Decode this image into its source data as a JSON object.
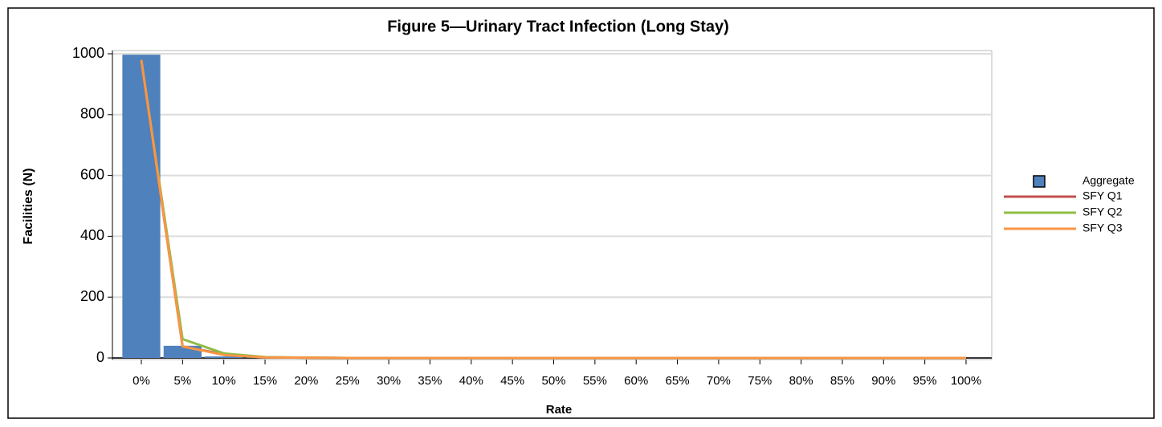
{
  "chart_data": {
    "type": "bar",
    "title": "Figure 5—Urinary Tract Infection (Long Stay)",
    "x_label": "Rate",
    "y_label": "Facilities (N)",
    "categories": [
      "0%",
      "5%",
      "10%",
      "15%",
      "20%",
      "25%",
      "30%",
      "35%",
      "40%",
      "45%",
      "50%",
      "55%",
      "60%",
      "65%",
      "70%",
      "75%",
      "80%",
      "85%",
      "90%",
      "95%",
      "100%"
    ],
    "series": [
      {
        "name": "Aggregate",
        "color": "#4f81bd",
        "type": "bar",
        "values": [
          997,
          40,
          5,
          1,
          0,
          0,
          0,
          0,
          0,
          0,
          0,
          0,
          0,
          0,
          0,
          0,
          0,
          0,
          0,
          0,
          0
        ]
      },
      {
        "name": "SFY Q1",
        "color": "#c0504d",
        "type": "line",
        "values": [
          975,
          38,
          12,
          2,
          1,
          0,
          0,
          0,
          0,
          0,
          0,
          0,
          0,
          0,
          0,
          0,
          0,
          0,
          0,
          0,
          0
        ]
      },
      {
        "name": "SFY Q2",
        "color": "#8fbc45",
        "type": "line",
        "values": [
          978,
          62,
          15,
          3,
          1,
          0,
          0,
          0,
          0,
          0,
          0,
          0,
          0,
          0,
          0,
          0,
          0,
          0,
          0,
          0,
          0
        ]
      },
      {
        "name": "SFY Q3",
        "color": "#f79646",
        "type": "line",
        "values": [
          980,
          38,
          10,
          2,
          1,
          0,
          0,
          0,
          0,
          0,
          0,
          0,
          0,
          0,
          0,
          0,
          0,
          0,
          0,
          0,
          0
        ]
      }
    ],
    "ylim": [
      0,
      1000
    ],
    "yticks": [
      0,
      200,
      400,
      600,
      800,
      1000
    ],
    "grid": true,
    "legend": "right"
  }
}
